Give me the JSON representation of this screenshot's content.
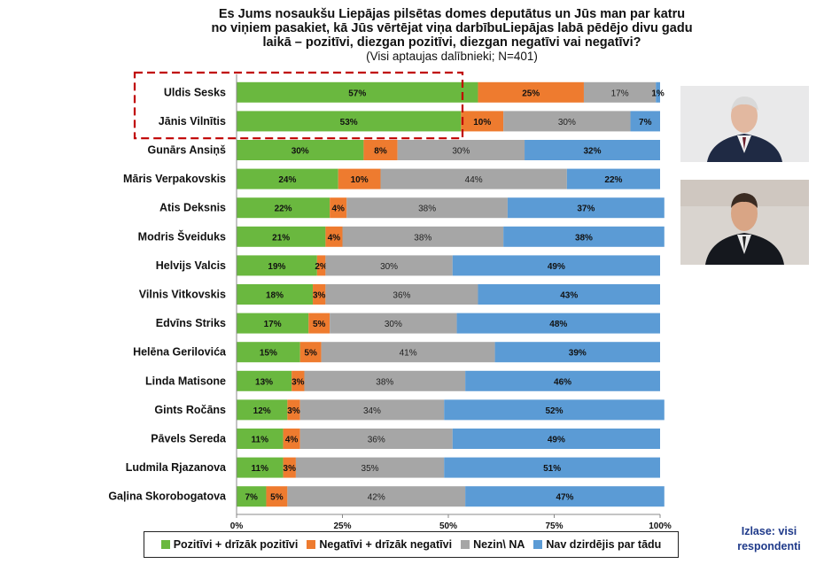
{
  "header": {
    "title_lines": [
      "Es Jums nosaukšu Liepājas pilsētas domes deputātus  un Jūs man  par katru",
      "no viņiem pasakiet, kā Jūs vērtējat viņa darbībuLiepājas labā pēdējo divu gadu",
      "laikā – pozitīvi, diezgan pozitīvi, diezgan negatīvi vai negatīvi?"
    ],
    "subtitle": "(Visi aptaujas dalībnieki;  N=401)"
  },
  "note": {
    "line1": "Izlase: visi",
    "line2": "respondenti"
  },
  "colors": {
    "positive": "#6ab83f",
    "negative": "#ee7b2f",
    "neutral": "#a6a6a6",
    "unknown": "#5b9bd5",
    "highlight": "#c00000"
  },
  "chart_data": {
    "type": "bar",
    "orientation": "horizontal",
    "stacked": true,
    "percent_stacked": true,
    "categories": [
      "Uldis Sesks",
      "Jānis Vilnītis",
      "Gunārs Ansiņš",
      "Māris Verpakovskis",
      "Atis Deksnis",
      "Modris Šveiduks",
      "Helvijs Valcis",
      "Vilnis Vitkovskis",
      "Edvīns Striks",
      "Helēna Gerilovića",
      "Linda Matisone",
      "Gints Ročāns",
      "Pāvels Sereda",
      "Ludmila Rjazanova",
      "Gaļina Skorobogatova"
    ],
    "series": [
      {
        "name": "Pozitīvi + drīzāk pozitīvi",
        "values": [
          57,
          53,
          30,
          24,
          22,
          21,
          19,
          18,
          17,
          15,
          13,
          12,
          11,
          11,
          7
        ]
      },
      {
        "name": "Negatīvi + drīzāk negatīvi",
        "values": [
          25,
          10,
          8,
          10,
          4,
          4,
          2,
          3,
          5,
          5,
          3,
          3,
          4,
          3,
          5
        ]
      },
      {
        "name": "Nezin\\ NA",
        "values": [
          17,
          30,
          30,
          44,
          38,
          38,
          30,
          36,
          30,
          41,
          38,
          34,
          36,
          35,
          42
        ]
      },
      {
        "name": "Nav dzirdējis par tādu",
        "values": [
          1,
          7,
          32,
          22,
          37,
          38,
          49,
          43,
          48,
          39,
          46,
          52,
          49,
          51,
          47
        ]
      }
    ],
    "labels": {
      "positive": [
        "57%",
        "53%",
        "30%",
        "24%",
        "22%",
        "21%",
        "19%",
        "18%",
        "17%",
        "15%",
        "13%",
        "12%",
        "11%",
        "11%",
        "7%"
      ],
      "negative": [
        "25%",
        "10%",
        "8%",
        "10%",
        "4%",
        "4%",
        "2%",
        "3%",
        "5%",
        "5%",
        "3%",
        "3%",
        "4%",
        "3%",
        "5%"
      ],
      "neutral": [
        "17%",
        "30%",
        "30%",
        "44%",
        "38%",
        "38%",
        "30%",
        "36%",
        "30%",
        "41%",
        "38%",
        "34%",
        "36%",
        "35%",
        "42%"
      ],
      "unknown": [
        "1%",
        "7%",
        "32%",
        "22%",
        "37%",
        "38%",
        "49%",
        "43%",
        "48%",
        "39%",
        "46%",
        "52%",
        "49%",
        "51%",
        "47%"
      ]
    },
    "xlim": [
      0,
      100
    ],
    "xticks": [
      "0%",
      "25%",
      "50%",
      "75%",
      "100%"
    ],
    "highlighted_rows": [
      0,
      1
    ],
    "grid": false,
    "legend_position": "bottom"
  }
}
